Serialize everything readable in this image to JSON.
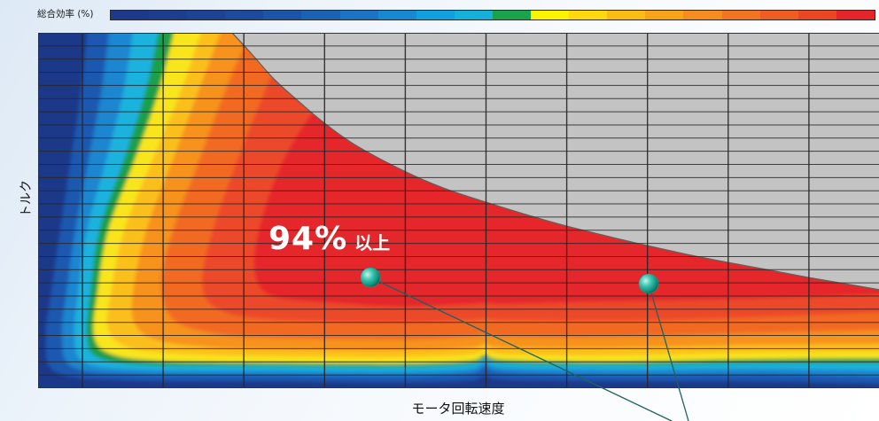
{
  "chart_data": {
    "type": "heatmap",
    "xlabel": "モータ回転速度",
    "ylabel": "トルク",
    "grid": true,
    "colorbar": {
      "label": "総合効率 (%)",
      "colors": [
        "#1d3a8a",
        "#1d3d8e",
        "#1e4294",
        "#1d4a9d",
        "#1c54a8",
        "#1a62b4",
        "#1a74c3",
        "#1689d2",
        "#12a0de",
        "#15b1d9",
        "#1aa34a",
        "#fff200",
        "#ffd80f",
        "#fcbc16",
        "#f9a31b",
        "#f68c1f",
        "#f37421",
        "#ef5d23",
        "#eb4725",
        "#e42529"
      ]
    },
    "contour_colors": [
      "#1c3888",
      "#1c58b0",
      "#1b86d0",
      "#1ab2de",
      "#1a9f48",
      "#f9e51b",
      "#fbbf1a",
      "#f7921f",
      "#f26a24",
      "#ec4829",
      "#e5282b"
    ],
    "outside_color": "#c3c3c3",
    "curve_color": "#6b5d58",
    "grid_color": "#262626",
    "annotation": {
      "value": "94%",
      "suffix": "以上",
      "color": "#ffffff"
    },
    "marker_color": "#14a08c",
    "callout_line_color": "#1e6262"
  }
}
